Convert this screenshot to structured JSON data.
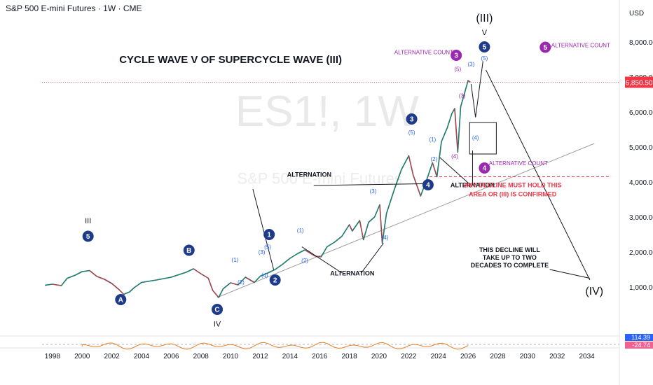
{
  "header": {
    "symbol_line": "S&P 500 E-mini Futures · 1W · CME",
    "currency": "USD"
  },
  "watermark": {
    "ticker": "ES1!, 1W",
    "name": "S&P 500 E-mini Futures"
  },
  "colors": {
    "up": "#089981",
    "down": "#f23645",
    "wave": "#1e3a8a",
    "alt": "#9c27b0",
    "sub": "#2962ff",
    "price_tag": "#f23645",
    "trend": "#9e9e9e"
  },
  "chart_data": {
    "type": "line",
    "title": "CYCLE WAVE V OF SUPERCYCLE WAVE (III)",
    "x_ticks": [
      "1998",
      "2000",
      "2002",
      "2004",
      "2006",
      "2008",
      "2010",
      "2012",
      "2014",
      "2016",
      "2018",
      "2020",
      "2022",
      "2024",
      "2026",
      "2028",
      "2030",
      "2032",
      "2034"
    ],
    "y_ticks": [
      "8,000.00",
      "7,000.00",
      "6,000.00",
      "5,000.00",
      "4,000.00",
      "3,000.00",
      "2,000.00",
      "1,000.00"
    ],
    "ylim": [
      0,
      8600
    ],
    "xlim": [
      1997.3,
      2036.0
    ],
    "last_price": "6,850.50",
    "series": [
      {
        "values": [
          [
            1997.5,
            1050
          ],
          [
            1998.0,
            1080
          ],
          [
            1998.6,
            1040
          ],
          [
            1999.0,
            1250
          ],
          [
            1999.5,
            1330
          ],
          [
            2000.0,
            1440
          ],
          [
            2000.5,
            1470
          ],
          [
            2001.0,
            1300
          ],
          [
            2001.5,
            1220
          ],
          [
            2002.0,
            1100
          ],
          [
            2002.5,
            920
          ],
          [
            2002.8,
            790
          ],
          [
            2003.2,
            860
          ],
          [
            2003.5,
            980
          ],
          [
            2004.0,
            1130
          ],
          [
            2005.0,
            1200
          ],
          [
            2006.0,
            1280
          ],
          [
            2007.0,
            1420
          ],
          [
            2007.5,
            1520
          ],
          [
            2008.0,
            1380
          ],
          [
            2008.5,
            1250
          ],
          [
            2008.8,
            900
          ],
          [
            2009.2,
            700
          ],
          [
            2009.5,
            950
          ],
          [
            2010.0,
            1120
          ],
          [
            2010.5,
            1060
          ],
          [
            2011.0,
            1280
          ],
          [
            2011.6,
            1130
          ],
          [
            2012.0,
            1310
          ],
          [
            2012.5,
            1400
          ],
          [
            2013.0,
            1500
          ],
          [
            2013.5,
            1650
          ],
          [
            2014.0,
            1820
          ],
          [
            2014.5,
            1950
          ],
          [
            2015.0,
            2060
          ],
          [
            2015.7,
            1880
          ],
          [
            2016.1,
            1860
          ],
          [
            2016.5,
            2150
          ],
          [
            2017.0,
            2280
          ],
          [
            2017.5,
            2450
          ],
          [
            2018.0,
            2780
          ],
          [
            2018.2,
            2600
          ],
          [
            2018.7,
            2900
          ],
          [
            2018.95,
            2350
          ],
          [
            2019.3,
            2850
          ],
          [
            2019.7,
            3000
          ],
          [
            2020.05,
            3350
          ],
          [
            2020.22,
            2250
          ],
          [
            2020.5,
            3100
          ],
          [
            2021.0,
            3750
          ],
          [
            2021.5,
            4350
          ],
          [
            2022.0,
            4750
          ],
          [
            2022.3,
            4200
          ],
          [
            2022.8,
            3600
          ],
          [
            2023.2,
            4050
          ],
          [
            2023.6,
            4550
          ],
          [
            2023.9,
            4150
          ],
          [
            2024.2,
            5150
          ],
          [
            2024.6,
            5550
          ],
          [
            2024.9,
            5950
          ],
          [
            2025.1,
            6100
          ],
          [
            2025.3,
            4850
          ],
          [
            2025.5,
            6150
          ],
          [
            2025.8,
            6600
          ],
          [
            2026.0,
            6900
          ],
          [
            2026.15,
            6850
          ]
        ]
      }
    ],
    "oscillator_values": [
      "114.39",
      "-24.74"
    ],
    "annotations": [
      {
        "text": "ALTERNATION",
        "x": 2015.3,
        "y": 4150
      },
      {
        "text": "ALTERNATION",
        "x": 2026.3,
        "y": 3850
      },
      {
        "text": "ALTERNATION",
        "x": 2018.2,
        "y": 1330
      },
      {
        "text": "ANY DECLINE MUST HOLD THIS",
        "x": 2029.0,
        "y": 3850,
        "color": "red"
      },
      {
        "text": "AREA OR (III) IS CONFIRMED",
        "x": 2029.0,
        "y": 3590,
        "color": "red"
      },
      {
        "text": "THIS DECLINE WILL",
        "x": 2028.8,
        "y": 2000
      },
      {
        "text": "TAKE UP TO TWO",
        "x": 2028.8,
        "y": 1780
      },
      {
        "text": "DECADES TO COMPLETE",
        "x": 2028.8,
        "y": 1560
      },
      {
        "text": "ALTERNATIVE COUNT",
        "x": 2025.0,
        "y": 7650,
        "color": "alt",
        "anchor": "end"
      },
      {
        "text": "ALTERNATIVE COUNT",
        "x": 2031.6,
        "y": 7850,
        "color": "alt",
        "anchor": "start"
      },
      {
        "text": "ALTERNATIVE COUNT",
        "x": 2027.4,
        "y": 4480,
        "color": "alt",
        "anchor": "start"
      }
    ],
    "wave_labels": [
      {
        "text": "III",
        "x": 2000.4,
        "y": 2900,
        "style": "roman"
      },
      {
        "text": "5",
        "x": 2000.4,
        "y": 2450,
        "style": "circle"
      },
      {
        "text": "A",
        "x": 2002.6,
        "y": 640,
        "style": "circle"
      },
      {
        "text": "B",
        "x": 2007.2,
        "y": 2050,
        "style": "circle"
      },
      {
        "text": "C",
        "x": 2009.1,
        "y": 360,
        "style": "circle"
      },
      {
        "text": "IV",
        "x": 2009.1,
        "y": -50,
        "style": "roman"
      },
      {
        "text": "1",
        "x": 2012.6,
        "y": 2500,
        "style": "circle"
      },
      {
        "text": "2",
        "x": 2013.0,
        "y": 1200,
        "style": "circle"
      },
      {
        "text": "3",
        "x": 2022.2,
        "y": 5800,
        "style": "circle"
      },
      {
        "text": "4",
        "x": 2023.3,
        "y": 3920,
        "style": "circle"
      },
      {
        "text": "5",
        "x": 2027.1,
        "y": 7860,
        "style": "circle"
      },
      {
        "text": "V",
        "x": 2027.1,
        "y": 8280,
        "style": "roman"
      },
      {
        "text": "(III)",
        "x": 2027.1,
        "y": 8700,
        "style": "roman-big"
      },
      {
        "text": "(IV)",
        "x": 2034.5,
        "y": 900,
        "style": "roman-big"
      },
      {
        "text": "3",
        "x": 2025.2,
        "y": 7620,
        "style": "alt"
      },
      {
        "text": "5",
        "x": 2031.2,
        "y": 7850,
        "style": "alt"
      },
      {
        "text": "4",
        "x": 2027.1,
        "y": 4400,
        "style": "alt"
      },
      {
        "text": "(1)",
        "x": 2010.3,
        "y": 1780,
        "style": "sub"
      },
      {
        "text": "(2)",
        "x": 2010.7,
        "y": 1140,
        "style": "sub"
      },
      {
        "text": "(3)",
        "x": 2012.1,
        "y": 2000,
        "style": "sub"
      },
      {
        "text": "(4)",
        "x": 2012.3,
        "y": 1340,
        "style": "sub"
      },
      {
        "text": "(5)",
        "x": 2012.5,
        "y": 2150,
        "style": "sub"
      },
      {
        "text": "(1)",
        "x": 2014.7,
        "y": 2620,
        "style": "sub"
      },
      {
        "text": "(2)",
        "x": 2015.0,
        "y": 1760,
        "style": "sub"
      },
      {
        "text": "(3)",
        "x": 2019.6,
        "y": 3740,
        "style": "sub"
      },
      {
        "text": "(4)",
        "x": 2020.4,
        "y": 2420,
        "style": "sub"
      },
      {
        "text": "(5)",
        "x": 2022.2,
        "y": 5420,
        "style": "sub"
      },
      {
        "text": "(1)",
        "x": 2023.6,
        "y": 5220,
        "style": "sub"
      },
      {
        "text": "(2)",
        "x": 2023.7,
        "y": 4660,
        "style": "sub"
      },
      {
        "text": "(3)",
        "x": 2025.6,
        "y": 6470,
        "style": "alt-sub"
      },
      {
        "text": "(4)",
        "x": 2025.1,
        "y": 4740,
        "style": "alt-sub"
      },
      {
        "text": "(5)",
        "x": 2025.3,
        "y": 7230,
        "style": "alt-sub"
      },
      {
        "text": "(3)",
        "x": 2026.2,
        "y": 7370,
        "style": "sub"
      },
      {
        "text": "(4)",
        "x": 2026.5,
        "y": 5270,
        "style": "sub"
      },
      {
        "text": "(5)",
        "x": 2027.1,
        "y": 7540,
        "style": "sub"
      }
    ]
  }
}
